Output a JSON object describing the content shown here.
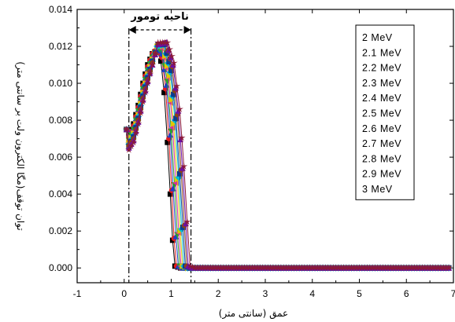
{
  "chart_data": {
    "type": "line",
    "title": "",
    "xlabel": "عمق (سانتی متر)",
    "ylabel": "توان توقف(مگا الکترون ولت بر سانتی متر)",
    "xlim": [
      -1,
      7
    ],
    "ylim": [
      -0.0008,
      0.014
    ],
    "xticks": [
      "-1",
      "0",
      "1",
      "2",
      "3",
      "4",
      "5",
      "6",
      "7"
    ],
    "yticks": [
      "0.000",
      "0.002",
      "0.004",
      "0.006",
      "0.008",
      "0.010",
      "0.012",
      "0.014"
    ],
    "grid": false,
    "legend_position": "top-right",
    "annotation": {
      "label": "ناحیه تومور",
      "x_start": 0.1,
      "x_end": 1.42
    },
    "series": [
      {
        "name": "2  MeV",
        "color": "#000000",
        "marker": "square",
        "values": [
          [
            0.05,
            0.0075
          ],
          [
            0.1,
            0.0072
          ],
          [
            0.2,
            0.0078
          ],
          [
            0.3,
            0.0088
          ],
          [
            0.4,
            0.01
          ],
          [
            0.5,
            0.011
          ],
          [
            0.6,
            0.0116
          ],
          [
            0.7,
            0.0118
          ],
          [
            0.78,
            0.0112
          ],
          [
            0.85,
            0.0095
          ],
          [
            0.92,
            0.0068
          ],
          [
            0.98,
            0.004
          ],
          [
            1.03,
            0.0015
          ],
          [
            1.08,
            0.0001
          ],
          [
            1.2,
            0
          ],
          [
            2,
            0
          ],
          [
            3,
            0
          ],
          [
            4,
            0
          ],
          [
            5,
            0
          ],
          [
            6,
            0
          ],
          [
            6.9,
            0
          ]
        ]
      },
      {
        "name": "2.1 MeV",
        "color": "#e41a1c",
        "marker": "circle",
        "values": [
          [
            0.05,
            0.0075
          ],
          [
            0.1,
            0.0071
          ],
          [
            0.2,
            0.0077
          ],
          [
            0.3,
            0.0087
          ],
          [
            0.4,
            0.0099
          ],
          [
            0.5,
            0.0109
          ],
          [
            0.6,
            0.0116
          ],
          [
            0.7,
            0.0119
          ],
          [
            0.8,
            0.0114
          ],
          [
            0.88,
            0.0097
          ],
          [
            0.95,
            0.007
          ],
          [
            1.01,
            0.0042
          ],
          [
            1.06,
            0.0016
          ],
          [
            1.11,
            0.0001
          ],
          [
            1.2,
            0
          ],
          [
            2,
            0
          ],
          [
            3,
            0
          ],
          [
            4,
            0
          ],
          [
            5,
            0
          ],
          [
            6,
            0
          ],
          [
            6.9,
            0
          ]
        ]
      },
      {
        "name": "2.2 MeV",
        "color": "#1f3fc7",
        "marker": "triangle-up",
        "values": [
          [
            0.05,
            0.0075
          ],
          [
            0.1,
            0.007
          ],
          [
            0.2,
            0.0076
          ],
          [
            0.3,
            0.0086
          ],
          [
            0.4,
            0.0098
          ],
          [
            0.5,
            0.0108
          ],
          [
            0.6,
            0.0115
          ],
          [
            0.7,
            0.0119
          ],
          [
            0.8,
            0.0116
          ],
          [
            0.9,
            0.0099
          ],
          [
            0.98,
            0.0072
          ],
          [
            1.04,
            0.0043
          ],
          [
            1.1,
            0.0017
          ],
          [
            1.15,
            0.0001
          ],
          [
            1.25,
            0
          ],
          [
            2,
            0
          ],
          [
            3,
            0
          ],
          [
            4,
            0
          ],
          [
            5,
            0
          ],
          [
            6,
            0
          ],
          [
            6.9,
            0
          ]
        ]
      },
      {
        "name": "2.3 MeV",
        "color": "#2ca02c",
        "marker": "triangle-down",
        "values": [
          [
            0.05,
            0.0075
          ],
          [
            0.1,
            0.0069
          ],
          [
            0.2,
            0.0075
          ],
          [
            0.3,
            0.0085
          ],
          [
            0.4,
            0.0097
          ],
          [
            0.5,
            0.0107
          ],
          [
            0.6,
            0.0114
          ],
          [
            0.7,
            0.0119
          ],
          [
            0.8,
            0.0118
          ],
          [
            0.92,
            0.0101
          ],
          [
            1.0,
            0.0074
          ],
          [
            1.07,
            0.0045
          ],
          [
            1.13,
            0.0018
          ],
          [
            1.18,
            0.0001
          ],
          [
            1.3,
            0
          ],
          [
            2,
            0
          ],
          [
            3,
            0
          ],
          [
            4,
            0
          ],
          [
            5,
            0
          ],
          [
            6,
            0
          ],
          [
            6.9,
            0
          ]
        ]
      },
      {
        "name": "2.4 MeV",
        "color": "#d62aa0",
        "marker": "triangle-left",
        "values": [
          [
            0.05,
            0.0075
          ],
          [
            0.1,
            0.0068
          ],
          [
            0.2,
            0.0074
          ],
          [
            0.3,
            0.0084
          ],
          [
            0.4,
            0.0096
          ],
          [
            0.5,
            0.0106
          ],
          [
            0.6,
            0.0114
          ],
          [
            0.7,
            0.012
          ],
          [
            0.8,
            0.0119
          ],
          [
            0.94,
            0.0103
          ],
          [
            1.03,
            0.0076
          ],
          [
            1.1,
            0.0046
          ],
          [
            1.16,
            0.0019
          ],
          [
            1.21,
            0.0001
          ],
          [
            1.3,
            0
          ],
          [
            2,
            0
          ],
          [
            3,
            0
          ],
          [
            4,
            0
          ],
          [
            5,
            0
          ],
          [
            6,
            0
          ],
          [
            6.9,
            0
          ]
        ]
      },
      {
        "name": "2.5 MeV",
        "color": "#e2c700",
        "marker": "triangle-right",
        "values": [
          [
            0.05,
            0.0075
          ],
          [
            0.1,
            0.0068
          ],
          [
            0.2,
            0.0073
          ],
          [
            0.3,
            0.0083
          ],
          [
            0.4,
            0.0095
          ],
          [
            0.5,
            0.0105
          ],
          [
            0.6,
            0.0113
          ],
          [
            0.7,
            0.012
          ],
          [
            0.82,
            0.012
          ],
          [
            0.96,
            0.0104
          ],
          [
            1.05,
            0.0078
          ],
          [
            1.13,
            0.0048
          ],
          [
            1.19,
            0.002
          ],
          [
            1.24,
            0.0001
          ],
          [
            1.35,
            0
          ],
          [
            2,
            0
          ],
          [
            3,
            0
          ],
          [
            4,
            0
          ],
          [
            5,
            0
          ],
          [
            6,
            0
          ],
          [
            6.9,
            0
          ]
        ]
      },
      {
        "name": "2.6 MeV",
        "color": "#00bcd4",
        "marker": "diamond",
        "values": [
          [
            0.05,
            0.0075
          ],
          [
            0.1,
            0.0067
          ],
          [
            0.2,
            0.0072
          ],
          [
            0.3,
            0.0082
          ],
          [
            0.4,
            0.0094
          ],
          [
            0.5,
            0.0104
          ],
          [
            0.6,
            0.0112
          ],
          [
            0.7,
            0.012
          ],
          [
            0.84,
            0.0121
          ],
          [
            0.98,
            0.0106
          ],
          [
            1.08,
            0.008
          ],
          [
            1.16,
            0.0049
          ],
          [
            1.22,
            0.0021
          ],
          [
            1.27,
            0.0001
          ],
          [
            1.35,
            0
          ],
          [
            2,
            0
          ],
          [
            3,
            0
          ],
          [
            4,
            0
          ],
          [
            5,
            0
          ],
          [
            6,
            0
          ],
          [
            6.9,
            0
          ]
        ]
      },
      {
        "name": "2.7 MeV",
        "color": "#0b3d91",
        "marker": "square",
        "values": [
          [
            0.05,
            0.0075
          ],
          [
            0.1,
            0.0066
          ],
          [
            0.2,
            0.0071
          ],
          [
            0.3,
            0.0081
          ],
          [
            0.4,
            0.0093
          ],
          [
            0.5,
            0.0103
          ],
          [
            0.6,
            0.0112
          ],
          [
            0.72,
            0.0121
          ],
          [
            0.86,
            0.0121
          ],
          [
            1.0,
            0.0107
          ],
          [
            1.1,
            0.0081
          ],
          [
            1.18,
            0.0051
          ],
          [
            1.25,
            0.0022
          ],
          [
            1.3,
            0.0001
          ],
          [
            1.4,
            0
          ],
          [
            2,
            0
          ],
          [
            3,
            0
          ],
          [
            4,
            0
          ],
          [
            5,
            0
          ],
          [
            6,
            0
          ],
          [
            6.9,
            0
          ]
        ]
      },
      {
        "name": "2.8 MeV",
        "color": "#8b4513",
        "marker": "circle",
        "values": [
          [
            0.05,
            0.0075
          ],
          [
            0.1,
            0.0066
          ],
          [
            0.2,
            0.007
          ],
          [
            0.3,
            0.008
          ],
          [
            0.4,
            0.0092
          ],
          [
            0.5,
            0.0102
          ],
          [
            0.6,
            0.0111
          ],
          [
            0.72,
            0.0121
          ],
          [
            0.88,
            0.0122
          ],
          [
            1.02,
            0.0109
          ],
          [
            1.13,
            0.0083
          ],
          [
            1.21,
            0.0053
          ],
          [
            1.28,
            0.0023
          ],
          [
            1.33,
            0.0001
          ],
          [
            1.42,
            0
          ],
          [
            2,
            0
          ],
          [
            3,
            0
          ],
          [
            4,
            0
          ],
          [
            5,
            0
          ],
          [
            6,
            0
          ],
          [
            6.9,
            0
          ]
        ]
      },
      {
        "name": "2.9 MeV",
        "color": "#6a0dad",
        "marker": "triangle-up",
        "values": [
          [
            0.05,
            0.0075
          ],
          [
            0.1,
            0.0065
          ],
          [
            0.2,
            0.0069
          ],
          [
            0.3,
            0.0079
          ],
          [
            0.4,
            0.0091
          ],
          [
            0.5,
            0.0101
          ],
          [
            0.6,
            0.011
          ],
          [
            0.72,
            0.0121
          ],
          [
            0.9,
            0.0122
          ],
          [
            1.04,
            0.011
          ],
          [
            1.15,
            0.0085
          ],
          [
            1.24,
            0.0054
          ],
          [
            1.31,
            0.0024
          ],
          [
            1.36,
            0.0001
          ],
          [
            1.45,
            0
          ],
          [
            2,
            0
          ],
          [
            3,
            0
          ],
          [
            4,
            0
          ],
          [
            5,
            0
          ],
          [
            6,
            0
          ],
          [
            6.9,
            0
          ]
        ]
      },
      {
        "name": "3  MeV",
        "color": "#8b1a3a",
        "marker": "star",
        "values": [
          [
            0.05,
            0.0075
          ],
          [
            0.1,
            0.0064
          ],
          [
            0.2,
            0.0068
          ],
          [
            0.3,
            0.0078
          ],
          [
            0.4,
            0.009
          ],
          [
            0.5,
            0.01
          ],
          [
            0.6,
            0.011
          ],
          [
            0.72,
            0.0122
          ],
          [
            0.92,
            0.0122
          ],
          [
            1.06,
            0.0111
          ],
          [
            1.18,
            0.0086
          ],
          [
            1.27,
            0.0055
          ],
          [
            1.34,
            0.0025
          ],
          [
            1.4,
            0.0001
          ],
          [
            1.5,
            0
          ],
          [
            2,
            0
          ],
          [
            3,
            0
          ],
          [
            4,
            0
          ],
          [
            5,
            0
          ],
          [
            6,
            0
          ],
          [
            6.9,
            0
          ]
        ]
      }
    ]
  }
}
